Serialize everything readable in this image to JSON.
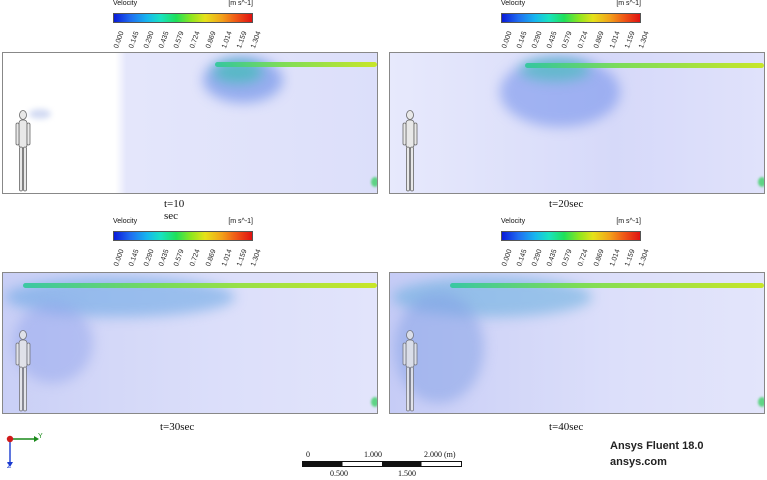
{
  "legend": {
    "title": "Velocity",
    "unit": "[m s^-1]",
    "ticks": [
      "0.000",
      "0.145",
      "0.290",
      "0.435",
      "0.579",
      "0.724",
      "0.869",
      "1.014",
      "1.159",
      "1.304"
    ]
  },
  "panels": [
    {
      "caption": "t=10 sec"
    },
    {
      "caption": "t=20sec"
    },
    {
      "caption": "t=30sec"
    },
    {
      "caption": "t=40sec"
    }
  ],
  "axes": {
    "y_label": "Y",
    "z_label": "Z"
  },
  "scale_bar": {
    "top_labels": [
      "0",
      "1.000",
      "2.000 (m)"
    ],
    "bottom_labels": [
      "0.500",
      "1.500"
    ]
  },
  "brand": {
    "product": "Ansys Fluent 18.0",
    "site": "ansys.com"
  },
  "colors": {
    "domain_background": "#dfe2fb",
    "jet": "#a8e23a"
  }
}
